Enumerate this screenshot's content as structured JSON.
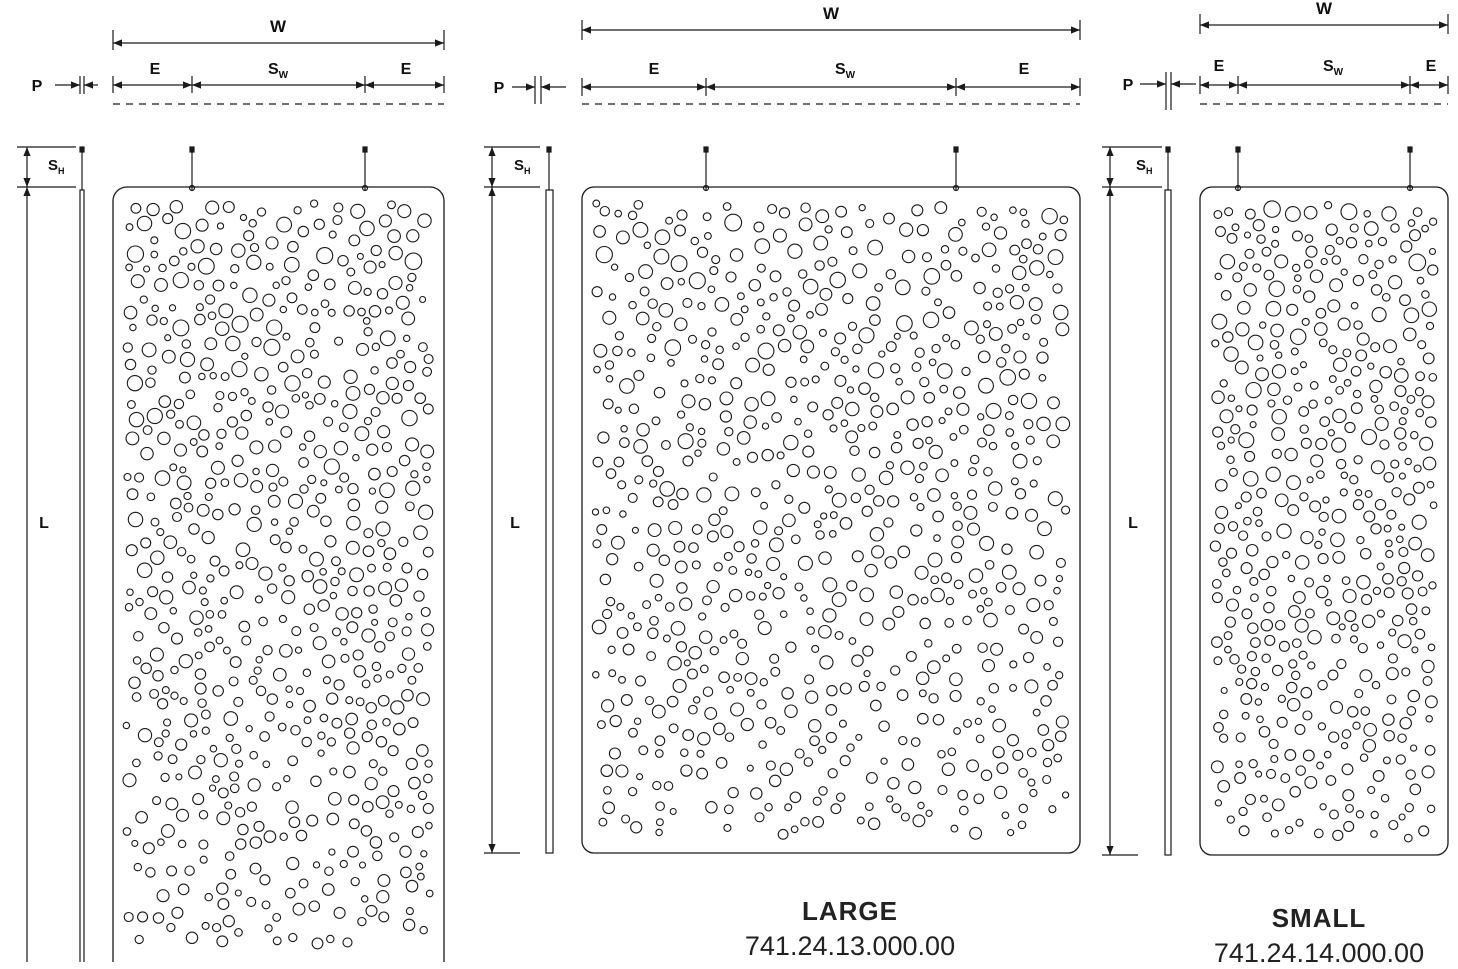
{
  "labels": {
    "width": "W",
    "edge": "E",
    "spacing_main": "S",
    "spacing_w_sub": "W",
    "spacing_h_sub": "H",
    "depth": "P",
    "length": "L"
  },
  "products": [
    {
      "name": "LARGE",
      "code": "741.24.13.000.00"
    },
    {
      "name": "SMALL",
      "code": "741.24.14.000.00"
    }
  ],
  "colors": {
    "line": "#1a1a1a",
    "background": "#ffffff"
  }
}
